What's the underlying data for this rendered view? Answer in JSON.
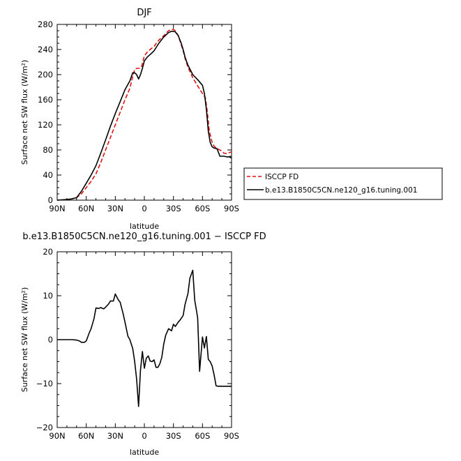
{
  "chart_data": [
    {
      "type": "line",
      "title": "DJF",
      "xlabel": "latitude",
      "ylabel": "Surface net SW flux (W/m²)",
      "x_ticks": [
        {
          "value": 90,
          "label": "90N"
        },
        {
          "value": 60,
          "label": "60N"
        },
        {
          "value": 30,
          "label": "30N"
        },
        {
          "value": 0,
          "label": "0"
        },
        {
          "value": -30,
          "label": "30S"
        },
        {
          "value": -60,
          "label": "60S"
        },
        {
          "value": -90,
          "label": "90S"
        }
      ],
      "y_ticks": [
        0,
        40,
        80,
        120,
        160,
        200,
        240,
        280
      ],
      "xlim": [
        90,
        -90
      ],
      "ylim": [
        0,
        280
      ],
      "legend_position": "right",
      "series": [
        {
          "name": "ISCCP FD",
          "color": "#e01010",
          "dash": "dashed",
          "x": [
            90,
            80,
            75,
            70,
            65,
            60,
            55,
            50,
            45,
            40,
            35,
            30,
            25,
            20,
            15,
            12,
            10,
            8,
            5,
            3,
            0,
            -3,
            -6,
            -10,
            -15,
            -20,
            -25,
            -28,
            -30,
            -32,
            -35,
            -38,
            -40,
            -42,
            -45,
            -50,
            -55,
            -60,
            -63,
            -65,
            -67,
            -70,
            -72,
            -75,
            -78,
            -80,
            -82,
            -85,
            -88,
            -90
          ],
          "y": [
            0,
            1,
            2,
            4,
            10,
            20,
            30,
            42,
            60,
            80,
            100,
            120,
            140,
            160,
            178,
            197,
            208,
            210,
            210,
            212,
            230,
            236,
            240,
            245,
            255,
            262,
            270,
            272,
            272,
            270,
            262,
            248,
            238,
            226,
            212,
            195,
            182,
            170,
            163,
            140,
            110,
            92,
            86,
            82,
            80,
            78,
            75,
            74,
            76,
            77
          ]
        },
        {
          "name": "b.e13.B1850C5CN.ne120_g16.tuning.001",
          "color": "#000000",
          "dash": "solid",
          "x": [
            90,
            80,
            75,
            70,
            65,
            60,
            55,
            50,
            45,
            40,
            35,
            30,
            25,
            20,
            15,
            12,
            10,
            8,
            6,
            4,
            2,
            0,
            -3,
            -6,
            -10,
            -15,
            -20,
            -25,
            -28,
            -30,
            -32,
            -35,
            -38,
            -40,
            -42,
            -45,
            -50,
            -55,
            -60,
            -62,
            -64,
            -66,
            -68,
            -70,
            -72,
            -75,
            -78,
            -80,
            -82,
            -85,
            -88,
            -90
          ],
          "y": [
            0,
            1,
            2,
            4,
            14,
            27,
            40,
            55,
            75,
            96,
            118,
            138,
            157,
            176,
            190,
            203,
            203,
            200,
            193,
            200,
            210,
            222,
            228,
            232,
            238,
            250,
            260,
            267,
            269,
            269,
            268,
            262,
            250,
            240,
            228,
            215,
            200,
            192,
            183,
            170,
            145,
            110,
            92,
            85,
            83,
            82,
            70,
            70,
            70,
            69,
            69,
            67
          ]
        }
      ]
    },
    {
      "type": "line",
      "title": "b.e13.B1850C5CN.ne120_g16.tuning.001 − ISCCP FD",
      "xlabel": "latitude",
      "ylabel": "Surface net SW flux (W/m²)",
      "x_ticks": [
        {
          "value": 90,
          "label": "90N"
        },
        {
          "value": 60,
          "label": "60N"
        },
        {
          "value": 30,
          "label": "30N"
        },
        {
          "value": 0,
          "label": "0"
        },
        {
          "value": -30,
          "label": "30S"
        },
        {
          "value": -60,
          "label": "60S"
        },
        {
          "value": -90,
          "label": "90S"
        }
      ],
      "y_ticks": [
        -20,
        -10,
        0,
        10,
        20
      ],
      "xlim": [
        90,
        -90
      ],
      "ylim": [
        -20,
        20
      ],
      "series": [
        {
          "name": "",
          "color": "#000000",
          "dash": "solid",
          "x": [
            90,
            80,
            75,
            70,
            67,
            65,
            62,
            60,
            57,
            55,
            52,
            50,
            47,
            45,
            42,
            40,
            37,
            35,
            32,
            30,
            27,
            25,
            22,
            20,
            17,
            15,
            12,
            10,
            8,
            6,
            4,
            2,
            0,
            -2,
            -4,
            -6,
            -8,
            -10,
            -12,
            -14,
            -16,
            -18,
            -20,
            -22,
            -25,
            -28,
            -30,
            -32,
            -35,
            -37,
            -40,
            -42,
            -45,
            -47,
            -50,
            -52,
            -55,
            -57,
            -60,
            -62,
            -64,
            -66,
            -68,
            -70,
            -72,
            -74,
            -76,
            -78,
            -80,
            -82,
            -85,
            -87,
            -90
          ],
          "y": [
            0,
            0,
            0,
            -0.1,
            -0.3,
            -0.6,
            -0.6,
            -0.3,
            1.5,
            2.5,
            4.8,
            7.2,
            7.1,
            7.3,
            7.0,
            7.4,
            8.1,
            8.8,
            8.8,
            10.4,
            9.1,
            8.5,
            6.0,
            4.0,
            0.8,
            0,
            -2.0,
            -5.0,
            -9.0,
            -15.2,
            -7.0,
            -2.7,
            -6.5,
            -4.2,
            -3.7,
            -4.9,
            -5.0,
            -4.6,
            -6.3,
            -6.3,
            -5.5,
            -4.0,
            -1.0,
            1.0,
            2.5,
            2.0,
            3.5,
            3.0,
            4.0,
            4.5,
            5.5,
            8.0,
            10.5,
            14.0,
            15.8,
            9.0,
            5.0,
            -7.2,
            0.6,
            -1.9,
            0.7,
            -4.5,
            -5.0,
            -6.0,
            -8.0,
            -10.5,
            -10.6,
            -10.6,
            -10.6,
            -10.6,
            -10.6,
            -10.6,
            -10.6
          ]
        }
      ]
    }
  ]
}
